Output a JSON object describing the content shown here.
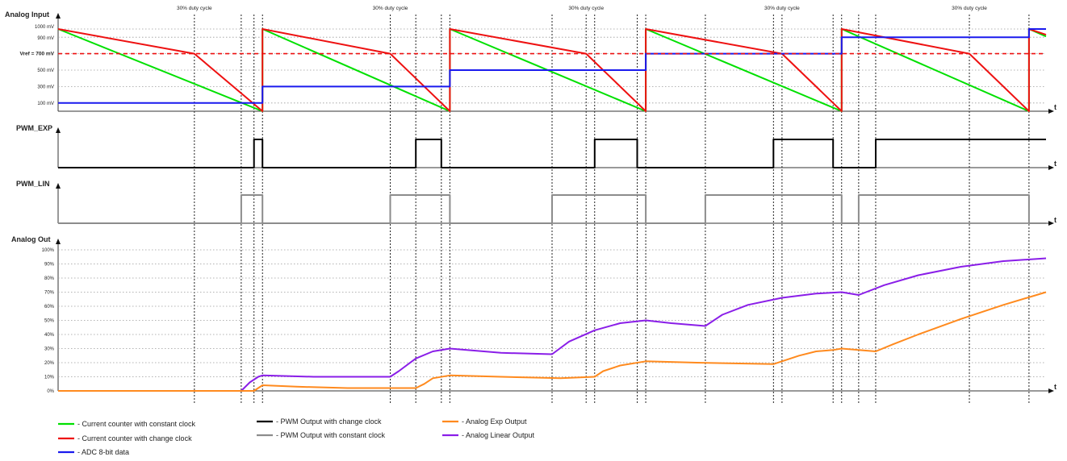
{
  "chart_data": [
    {
      "type": "line",
      "panel": "analog_input",
      "title": "Analog Input",
      "xlabel": "t",
      "y_ticks": [
        {
          "value": 1000,
          "label": "1000 mV"
        },
        {
          "value": 900,
          "label": "900 mV"
        },
        {
          "value": 700,
          "label": "Vref = 700 mV"
        },
        {
          "value": 500,
          "label": "500 mV"
        },
        {
          "value": 300,
          "label": "300 mV"
        },
        {
          "value": 100,
          "label": "100 mV"
        }
      ],
      "ylim": [
        0,
        1000
      ],
      "annotations": [
        {
          "label": "30% duty cycle",
          "x": 16
        },
        {
          "label": "30% duty cycle",
          "x": 39
        },
        {
          "label": "30% duty cycle",
          "x": 62
        },
        {
          "label": "30% duty cycle",
          "x": 85
        },
        {
          "label": "30% duty cycle",
          "x": 107
        }
      ],
      "series": [
        {
          "key": "green",
          "x": [
            0,
            24,
            24,
            46,
            46,
            69,
            69,
            92,
            92,
            114,
            114,
            116
          ],
          "y": [
            1000,
            0,
            1000,
            0,
            1000,
            0,
            1000,
            0,
            1000,
            0,
            1000,
            910
          ]
        },
        {
          "key": "red",
          "x": [
            0,
            16,
            24,
            24,
            39,
            46,
            46,
            62,
            69,
            69,
            85,
            92,
            92,
            107,
            114,
            114,
            116
          ],
          "y": [
            1000,
            700,
            0,
            1000,
            700,
            0,
            1000,
            700,
            0,
            1000,
            700,
            0,
            1000,
            700,
            0,
            1000,
            930
          ]
        },
        {
          "key": "blue",
          "x": [
            0,
            24,
            24,
            46,
            46,
            69,
            69,
            92,
            92,
            114,
            114,
            116
          ],
          "y": [
            100,
            100,
            300,
            300,
            500,
            500,
            700,
            700,
            900,
            900,
            1000,
            1000
          ]
        },
        {
          "key": "vref",
          "x": [
            0,
            116
          ],
          "y": [
            700,
            700
          ]
        }
      ]
    },
    {
      "type": "line",
      "panel": "pwm_exp",
      "title": "PWM_EXP",
      "xlabel": "t",
      "ylim": [
        0,
        1
      ],
      "series": [
        {
          "key": "black",
          "x": [
            0,
            23,
            23,
            24,
            24,
            42,
            42,
            45,
            45,
            63,
            63,
            68,
            68,
            84,
            84,
            91,
            91,
            96,
            96,
            116
          ],
          "y": [
            0,
            0,
            1,
            1,
            0,
            0,
            1,
            1,
            0,
            0,
            1,
            1,
            0,
            0,
            1,
            1,
            0,
            0,
            1,
            1
          ]
        }
      ]
    },
    {
      "type": "line",
      "panel": "pwm_lin",
      "title": "PWM_LIN",
      "xlabel": "t",
      "ylim": [
        0,
        1
      ],
      "series": [
        {
          "key": "gray",
          "x": [
            0,
            21.5,
            21.5,
            24,
            24,
            39,
            39,
            46,
            46,
            58,
            58,
            69,
            69,
            76,
            76,
            92,
            92,
            94,
            94,
            114,
            114,
            116
          ],
          "y": [
            0,
            0,
            1,
            1,
            0,
            0,
            1,
            1,
            0,
            0,
            1,
            1,
            0,
            0,
            1,
            1,
            0,
            0,
            1,
            1,
            0,
            0
          ]
        }
      ]
    },
    {
      "type": "line",
      "panel": "analog_out",
      "title": "Analog Out",
      "xlabel": "t",
      "y_ticks": [
        {
          "value": 100,
          "label": "100%"
        },
        {
          "value": 90,
          "label": "90%"
        },
        {
          "value": 80,
          "label": "80%"
        },
        {
          "value": 70,
          "label": "70%"
        },
        {
          "value": 60,
          "label": "60%"
        },
        {
          "value": 50,
          "label": "50%"
        },
        {
          "value": 40,
          "label": "40%"
        },
        {
          "value": 30,
          "label": "30%"
        },
        {
          "value": 20,
          "label": "20%"
        },
        {
          "value": 10,
          "label": "10%"
        },
        {
          "value": 0,
          "label": "0%"
        }
      ],
      "ylim": [
        0,
        100
      ],
      "series": [
        {
          "key": "purple",
          "x": [
            0,
            21.5,
            22.5,
            23.5,
            24,
            30,
            39,
            40,
            42,
            44,
            46,
            52,
            58,
            60,
            63,
            66,
            69,
            72,
            76,
            78,
            81,
            85,
            89,
            92,
            94,
            97,
            101,
            106,
            111,
            116
          ],
          "y": [
            0,
            0,
            6,
            10,
            11,
            10,
            10,
            14,
            23,
            28,
            30,
            27,
            26,
            35,
            43,
            48,
            50,
            48,
            46,
            54,
            61,
            66,
            69,
            70,
            68,
            75,
            82,
            88,
            92,
            94
          ]
        },
        {
          "key": "orange",
          "x": [
            0,
            23,
            24,
            28,
            34,
            42,
            43,
            44,
            46,
            52,
            59,
            63,
            64,
            66,
            69,
            75,
            84,
            87,
            89,
            91,
            92,
            96,
            98,
            101,
            106,
            111,
            116
          ],
          "y": [
            0,
            0,
            4,
            3,
            2,
            2,
            5,
            9,
            11,
            10,
            9,
            10,
            14,
            18,
            21,
            20,
            19,
            25,
            28,
            29,
            30,
            28,
            33,
            40,
            51,
            61,
            70
          ]
        }
      ]
    }
  ],
  "legend": [
    {
      "label": "- Current counter with constant clock",
      "color": "#00e000"
    },
    {
      "label": "- Current counter with change clock",
      "color": "#ee1111"
    },
    {
      "label": "- ADC 8-bit data",
      "color": "#1a1aee"
    },
    {
      "label": "- PWM Output with change clock",
      "color": "#000000"
    },
    {
      "label": "- PWM Output with constant clock",
      "color": "#8c8c8c"
    },
    {
      "label": "- Analog Exp Output",
      "color": "#ff8a1e"
    },
    {
      "label": "- Analog Linear Output",
      "color": "#8a1ee8"
    }
  ],
  "colors": {
    "green": "#00e000",
    "red": "#ee1111",
    "blue": "#1a1aee",
    "vref": "#ee1111",
    "black": "#000000",
    "gray": "#8c8c8c",
    "orange": "#ff8a1e",
    "purple": "#8a1ee8",
    "grid": "#9a9a9a",
    "marker": "#222222"
  },
  "event_markers": [
    16,
    21.5,
    23,
    24,
    39,
    42,
    45,
    46,
    58,
    62,
    63,
    68,
    69,
    76,
    84,
    85,
    91,
    92,
    94,
    96,
    107,
    114
  ]
}
